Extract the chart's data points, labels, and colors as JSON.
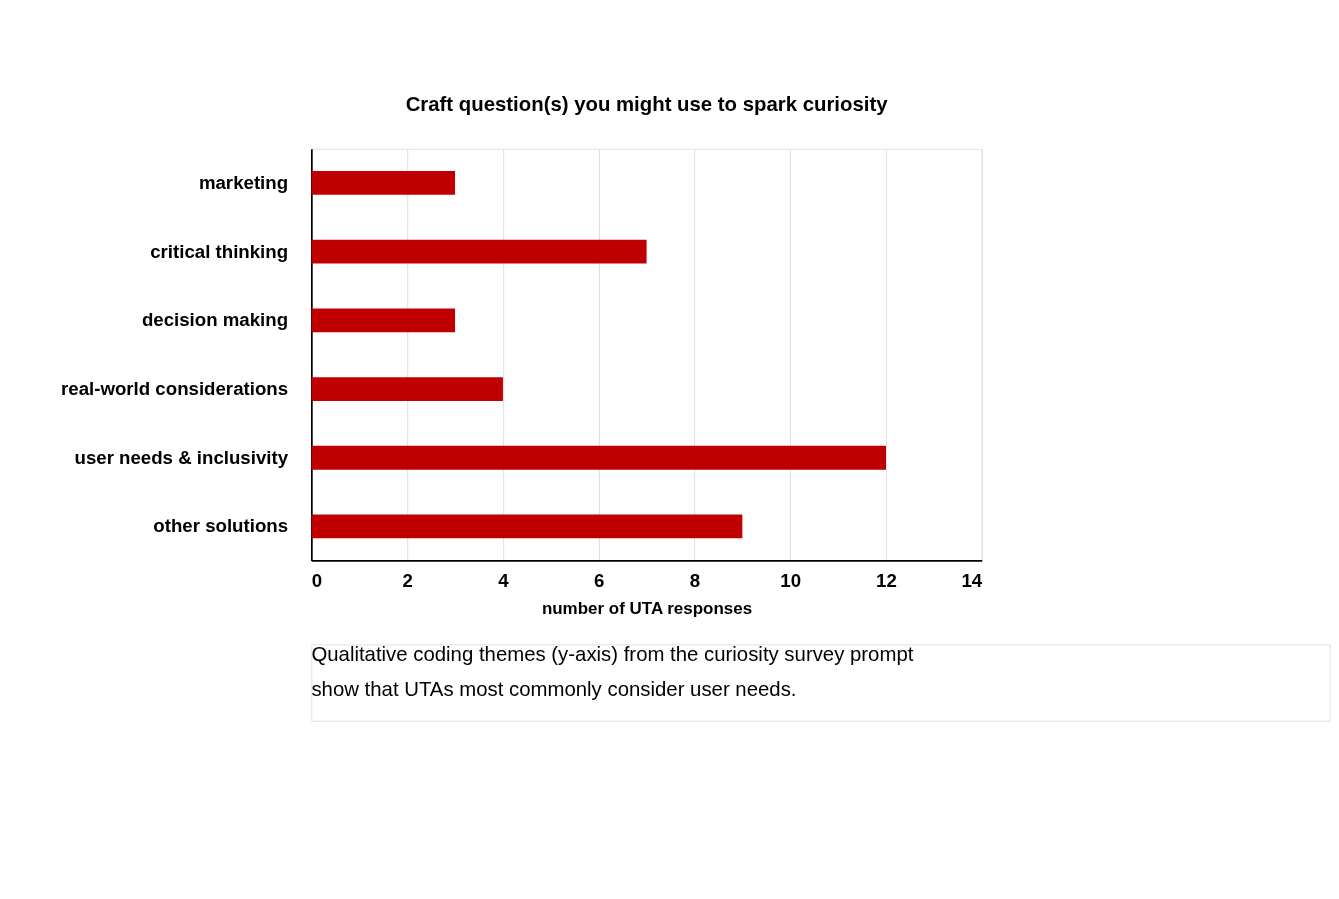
{
  "chart_data": {
    "type": "bar",
    "orientation": "horizontal",
    "title": "Craft question(s) you might use to spark curiosity",
    "categories": [
      "marketing",
      "critical thinking",
      "decision making",
      "real-world considerations",
      "user needs & inclusivity",
      "other solutions"
    ],
    "values": [
      3,
      7,
      3,
      4,
      12,
      9
    ],
    "color": "#c00000",
    "xlabel": "number of UTA responses",
    "xlim": [
      0,
      14
    ],
    "xticks": [
      0,
      2,
      4,
      6,
      8,
      10,
      12,
      14
    ],
    "grid": "x",
    "annotations": [
      "Qualitative coding themes (y-axis) from the curiosity survey prompt show that UTAs most commonly consider user needs."
    ]
  }
}
